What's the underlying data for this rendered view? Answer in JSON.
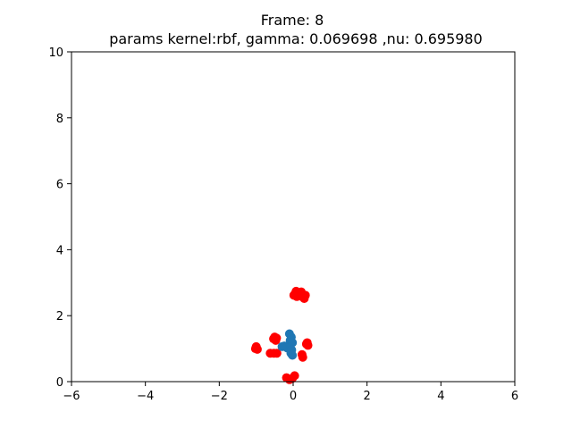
{
  "chart_data": {
    "type": "scatter",
    "title": "Frame: 8",
    "subtitle": "params kernel:rbf, gamma: 0.069698 ,nu: 0.695980",
    "xlabel": "",
    "ylabel": "",
    "xlim": [
      -6,
      6
    ],
    "ylim": [
      0,
      10
    ],
    "x_ticks": [
      "−6",
      "−4",
      "−2",
      "0",
      "2",
      "4",
      "6"
    ],
    "y_ticks": [
      "0",
      "2",
      "4",
      "6",
      "8",
      "10"
    ],
    "grid": false,
    "legend": "none",
    "series": [
      {
        "color": "#ff0000",
        "points": [
          [
            0.02,
            2.62
          ],
          [
            0.08,
            2.74
          ],
          [
            0.14,
            2.7
          ],
          [
            0.2,
            2.6
          ],
          [
            0.27,
            2.56
          ],
          [
            0.33,
            2.62
          ],
          [
            0.1,
            2.58
          ],
          [
            0.05,
            2.66
          ],
          [
            0.22,
            2.72
          ],
          [
            0.3,
            2.52
          ],
          [
            -1.0,
            1.06
          ],
          [
            -0.97,
            0.98
          ],
          [
            -1.02,
            1.0
          ],
          [
            -0.5,
            1.35
          ],
          [
            -0.47,
            1.25
          ],
          [
            -0.53,
            1.3
          ],
          [
            -0.45,
            1.32
          ],
          [
            -0.62,
            0.86
          ],
          [
            -0.52,
            0.86
          ],
          [
            -0.44,
            0.86
          ],
          [
            0.38,
            1.18
          ],
          [
            0.4,
            1.1
          ],
          [
            0.36,
            1.14
          ],
          [
            0.24,
            0.82
          ],
          [
            0.26,
            0.74
          ],
          [
            -0.18,
            0.12
          ],
          [
            -0.1,
            0.06
          ],
          [
            -0.02,
            0.1
          ],
          [
            0.04,
            0.18
          ]
        ]
      },
      {
        "color": "#1f77b4",
        "points": [
          [
            -0.1,
            1.45
          ],
          [
            -0.05,
            1.35
          ],
          [
            -0.08,
            1.25
          ],
          [
            -0.02,
            1.18
          ],
          [
            -0.24,
            1.08
          ],
          [
            -0.16,
            1.02
          ],
          [
            -0.04,
            0.96
          ],
          [
            -0.06,
            0.86
          ],
          [
            -0.02,
            0.8
          ],
          [
            -0.3,
            1.06
          ]
        ]
      }
    ]
  }
}
